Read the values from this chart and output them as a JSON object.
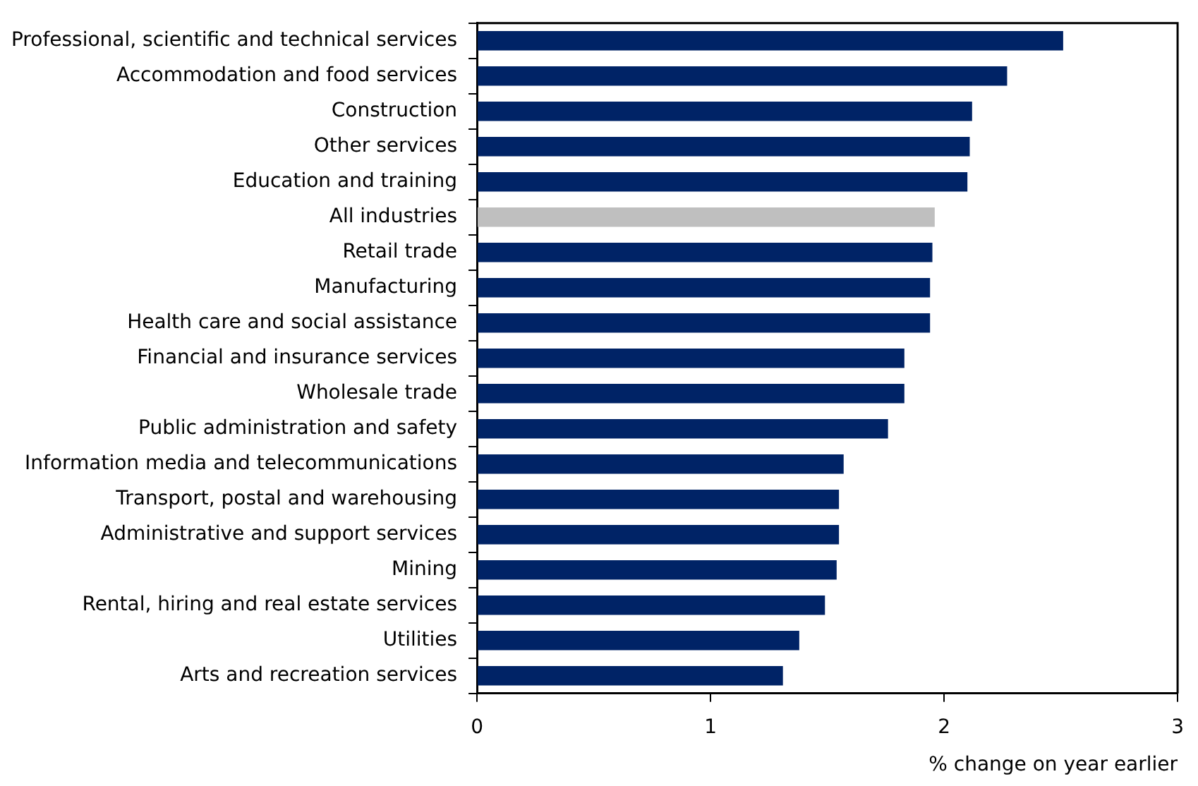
{
  "chart_data": {
    "type": "bar",
    "orientation": "horizontal",
    "xlabel": "% change on year earlier",
    "categories": [
      "Professional, scientific and technical services",
      "Accommodation and food services",
      "Construction",
      "Other services",
      "Education and training",
      "All industries",
      "Retail trade",
      "Manufacturing",
      "Health care and social assistance",
      "Financial and insurance services",
      "Wholesale trade",
      "Public administration and safety",
      "Information media and telecommunications",
      "Transport, postal and warehousing",
      "Administrative and support services",
      "Mining",
      "Rental, hiring and real estate services",
      "Utilities",
      "Arts and recreation services"
    ],
    "values": [
      2.51,
      2.27,
      2.12,
      2.11,
      2.1,
      1.96,
      1.95,
      1.94,
      1.94,
      1.83,
      1.83,
      1.76,
      1.57,
      1.55,
      1.55,
      1.54,
      1.49,
      1.38,
      1.31
    ],
    "colors": [
      "#002366",
      "#002366",
      "#002366",
      "#002366",
      "#002366",
      "#bfbfbf",
      "#002366",
      "#002366",
      "#002366",
      "#002366",
      "#002366",
      "#002366",
      "#002366",
      "#002366",
      "#002366",
      "#002366",
      "#002366",
      "#002366",
      "#002366"
    ],
    "xlim": [
      0,
      3
    ],
    "xticks": [
      0,
      1,
      2,
      3
    ],
    "grid": false,
    "legend": false
  }
}
